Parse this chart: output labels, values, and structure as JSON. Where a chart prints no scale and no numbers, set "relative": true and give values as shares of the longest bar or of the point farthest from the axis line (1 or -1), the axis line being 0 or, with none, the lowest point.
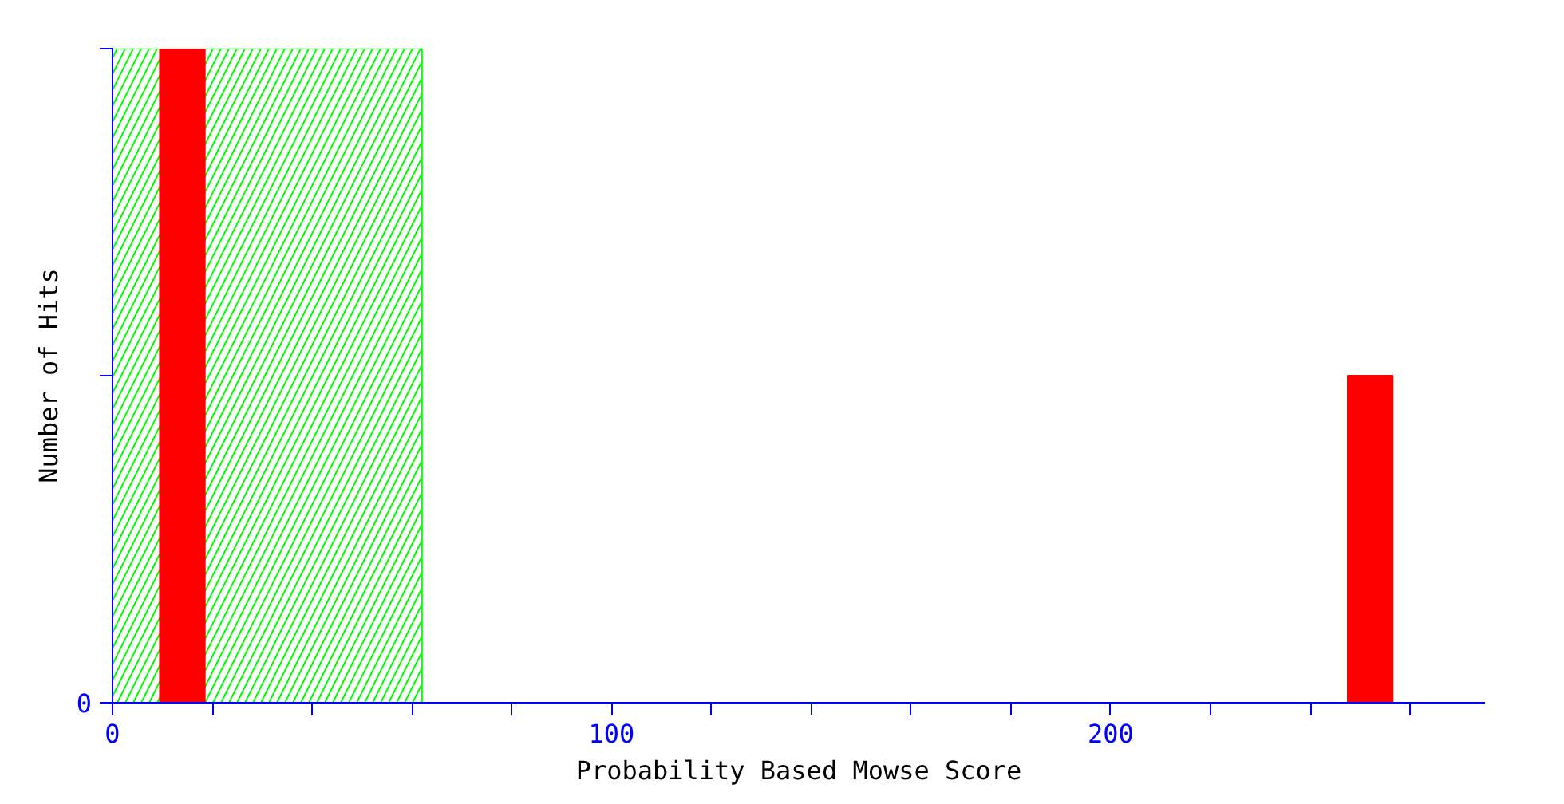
{
  "chart_data": {
    "type": "bar",
    "relative": true,
    "xlabel": "Probability Based Mowse Score",
    "ylabel": "Number of Hits",
    "x": [
      14,
      252
    ],
    "values": [
      1,
      0.5
    ],
    "color": "#ff0000",
    "xlim": [
      0,
      275
    ],
    "xticks": [
      0,
      {
        "value": 20,
        "label": null
      },
      {
        "value": 40,
        "label": null
      },
      {
        "value": 60,
        "label": null
      },
      {
        "value": 80,
        "label": null
      },
      100,
      {
        "value": 120,
        "label": null
      },
      {
        "value": 140,
        "label": null
      },
      {
        "value": 160,
        "label": null
      },
      {
        "value": 180,
        "label": null
      },
      200,
      {
        "value": 220,
        "label": null
      },
      {
        "value": 240,
        "label": null
      },
      {
        "value": 260,
        "label": null
      }
    ],
    "bands": [
      {
        "axis": "x",
        "from": 0,
        "to": 62,
        "color": "#00ff00"
      }
    ],
    "annotations": [
      "0"
    ],
    "grid": false
  }
}
